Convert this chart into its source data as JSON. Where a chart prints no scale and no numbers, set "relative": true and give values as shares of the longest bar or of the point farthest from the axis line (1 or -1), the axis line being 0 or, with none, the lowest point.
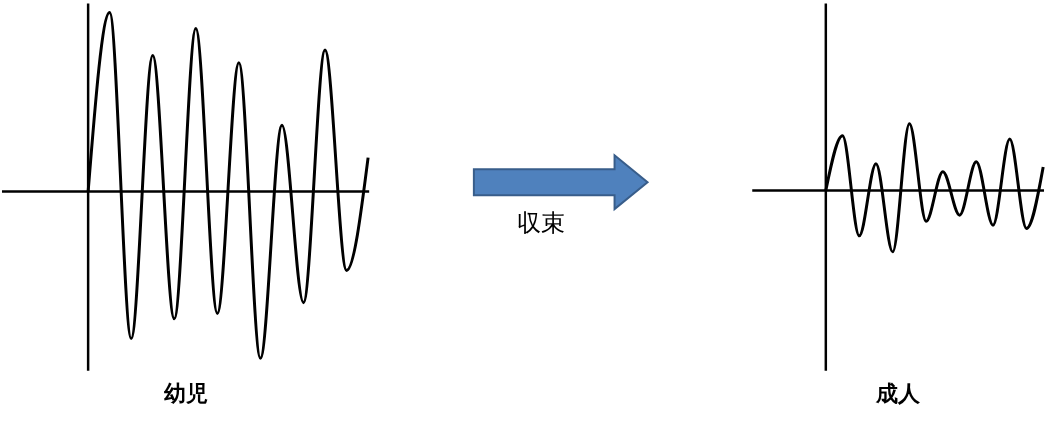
{
  "chart_data": [
    {
      "type": "line",
      "relative": true,
      "xlabel": "幼児",
      "categories": [
        null,
        null,
        null,
        null,
        null,
        null,
        null,
        null,
        null,
        null,
        null,
        null,
        null,
        null
      ],
      "series": [
        {
          "color": "#000000",
          "values": [
            0,
            1,
            -0.82,
            0.76,
            -0.71,
            0.91,
            -0.68,
            0.72,
            -0.93,
            0.37,
            -0.62,
            0.79,
            -0.44,
            0.19
          ]
        }
      ]
    },
    {
      "type": "other",
      "annotations": [
        "収束"
      ]
    },
    {
      "type": "line",
      "relative": true,
      "xlabel": "成人",
      "categories": [
        null,
        null,
        null,
        null,
        null,
        null,
        null,
        null,
        null,
        null,
        null,
        null,
        null,
        null
      ],
      "series": [
        {
          "color": "#000000",
          "values": [
            0,
            0.82,
            -0.68,
            0.4,
            -0.92,
            1,
            -0.46,
            0.28,
            -0.37,
            0.43,
            -0.52,
            0.77,
            -0.57,
            0.35
          ]
        }
      ]
    }
  ]
}
